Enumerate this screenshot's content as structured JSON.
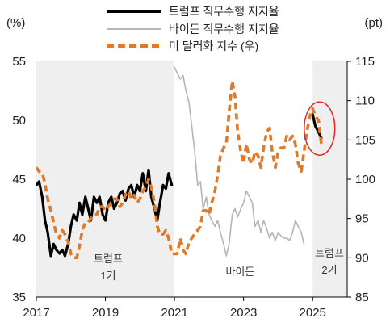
{
  "chart_data": {
    "type": "line",
    "y_left": {
      "unit": "(%)",
      "range": [
        35,
        55
      ],
      "ticks": [
        35,
        40,
        45,
        50,
        55
      ]
    },
    "y_right": {
      "unit": "(pt)",
      "range": [
        85,
        115
      ],
      "ticks": [
        85,
        90,
        95,
        100,
        105,
        110,
        115
      ]
    },
    "x_axis": {
      "range": [
        2017,
        2026
      ],
      "ticks": [
        "2017",
        "2019",
        "2021",
        "2023",
        "2025"
      ],
      "tick_values": [
        2017,
        2019,
        2021,
        2023,
        2025
      ]
    },
    "shaded_periods": [
      {
        "label_lines": [
          "트럼프",
          "1기"
        ],
        "start": 2017,
        "end": 2021
      },
      {
        "label_lines": [
          "트럼프",
          "2기"
        ],
        "start": 2025,
        "end": 2026
      }
    ],
    "annotations": [
      {
        "text": "바이든",
        "x": 2022.9,
        "y": 37.2
      }
    ],
    "highlight_circle": {
      "x": 2025.2,
      "y_left": 49.3,
      "color": "#e8212b"
    },
    "legend": {
      "placement": "top-center",
      "entries": [
        {
          "label": "트럼프 직무수행 지지율",
          "color": "#000000",
          "style": "solid-thick"
        },
        {
          "label": "바이든 직무수행 지지율",
          "color": "#b5b5b5",
          "style": "solid-thin"
        },
        {
          "label": "미 달러화 지수 (우)",
          "color": "#e07a2b",
          "style": "dashed"
        }
      ]
    },
    "series": [
      {
        "name": "트럼프 직무수행 지지율",
        "axis": "left",
        "color": "#000000",
        "points": [
          [
            2017.0,
            44.5
          ],
          [
            2017.08,
            44.8
          ],
          [
            2017.17,
            43.5
          ],
          [
            2017.25,
            41.5
          ],
          [
            2017.33,
            40.5
          ],
          [
            2017.42,
            38.5
          ],
          [
            2017.5,
            39.5
          ],
          [
            2017.58,
            39.0
          ],
          [
            2017.67,
            38.7
          ],
          [
            2017.75,
            39.0
          ],
          [
            2017.83,
            38.5
          ],
          [
            2017.92,
            39.5
          ],
          [
            2018.0,
            41.0
          ],
          [
            2018.08,
            42.0
          ],
          [
            2018.17,
            41.5
          ],
          [
            2018.25,
            43.0
          ],
          [
            2018.33,
            42.0
          ],
          [
            2018.42,
            43.5
          ],
          [
            2018.5,
            42.5
          ],
          [
            2018.58,
            41.5
          ],
          [
            2018.67,
            43.5
          ],
          [
            2018.75,
            43.0
          ],
          [
            2018.83,
            43.5
          ],
          [
            2018.92,
            42.0
          ],
          [
            2019.0,
            41.5
          ],
          [
            2019.08,
            43.0
          ],
          [
            2019.17,
            43.5
          ],
          [
            2019.25,
            42.5
          ],
          [
            2019.33,
            43.0
          ],
          [
            2019.42,
            43.8
          ],
          [
            2019.5,
            44.0
          ],
          [
            2019.58,
            43.2
          ],
          [
            2019.67,
            44.2
          ],
          [
            2019.75,
            44.5
          ],
          [
            2019.83,
            43.5
          ],
          [
            2019.92,
            44.5
          ],
          [
            2020.0,
            44.0
          ],
          [
            2020.08,
            45.5
          ],
          [
            2020.17,
            44.0
          ],
          [
            2020.25,
            45.8
          ],
          [
            2020.33,
            43.5
          ],
          [
            2020.42,
            42.5
          ],
          [
            2020.5,
            41.5
          ],
          [
            2020.58,
            43.0
          ],
          [
            2020.67,
            44.5
          ],
          [
            2020.75,
            44.2
          ],
          [
            2020.83,
            45.5
          ],
          [
            2020.92,
            44.5
          ]
        ]
      },
      {
        "name": "바이든 직무수행 지지율",
        "axis": "left",
        "color": "#b5b5b5",
        "points": [
          [
            2021.0,
            54.5
          ],
          [
            2021.08,
            54.0
          ],
          [
            2021.17,
            53.5
          ],
          [
            2021.25,
            53.8
          ],
          [
            2021.33,
            52.5
          ],
          [
            2021.42,
            51.5
          ],
          [
            2021.5,
            49.5
          ],
          [
            2021.58,
            47.5
          ],
          [
            2021.67,
            44.5
          ],
          [
            2021.75,
            44.8
          ],
          [
            2021.83,
            42.5
          ],
          [
            2021.92,
            43.5
          ],
          [
            2022.0,
            42.0
          ],
          [
            2022.08,
            41.5
          ],
          [
            2022.17,
            41.0
          ],
          [
            2022.25,
            41.5
          ],
          [
            2022.33,
            40.5
          ],
          [
            2022.42,
            39.5
          ],
          [
            2022.5,
            38.5
          ],
          [
            2022.58,
            39.5
          ],
          [
            2022.67,
            42.0
          ],
          [
            2022.75,
            42.5
          ],
          [
            2022.83,
            41.8
          ],
          [
            2022.92,
            42.5
          ],
          [
            2023.0,
            43.0
          ],
          [
            2023.08,
            44.0
          ],
          [
            2023.17,
            43.5
          ],
          [
            2023.25,
            43.0
          ],
          [
            2023.33,
            41.0
          ],
          [
            2023.42,
            41.5
          ],
          [
            2023.5,
            40.5
          ],
          [
            2023.58,
            41.5
          ],
          [
            2023.67,
            40.8
          ],
          [
            2023.75,
            40.0
          ],
          [
            2023.83,
            40.5
          ],
          [
            2023.92,
            39.8
          ],
          [
            2024.0,
            40.5
          ],
          [
            2024.08,
            40.2
          ],
          [
            2024.17,
            40.0
          ],
          [
            2024.25,
            40.0
          ],
          [
            2024.33,
            39.8
          ],
          [
            2024.42,
            40.5
          ],
          [
            2024.5,
            41.5
          ],
          [
            2024.58,
            41.0
          ],
          [
            2024.67,
            40.5
          ],
          [
            2024.75,
            39.5
          ]
        ]
      },
      {
        "name": "미 달러화 지수 (우)",
        "axis": "right",
        "color": "#e07a2b",
        "points": [
          [
            2017.0,
            101.5
          ],
          [
            2017.08,
            101.0
          ],
          [
            2017.17,
            100.8
          ],
          [
            2017.25,
            99.5
          ],
          [
            2017.33,
            97.5
          ],
          [
            2017.42,
            96.0
          ],
          [
            2017.5,
            94.5
          ],
          [
            2017.58,
            93.0
          ],
          [
            2017.67,
            92.5
          ],
          [
            2017.75,
            93.5
          ],
          [
            2017.83,
            93.0
          ],
          [
            2017.92,
            92.0
          ],
          [
            2018.0,
            90.5
          ],
          [
            2018.08,
            90.0
          ],
          [
            2018.17,
            90.0
          ],
          [
            2018.25,
            91.5
          ],
          [
            2018.33,
            93.5
          ],
          [
            2018.42,
            94.5
          ],
          [
            2018.5,
            94.5
          ],
          [
            2018.58,
            95.0
          ],
          [
            2018.67,
            95.5
          ],
          [
            2018.75,
            95.5
          ],
          [
            2018.83,
            96.5
          ],
          [
            2018.92,
            96.5
          ],
          [
            2019.0,
            96.0
          ],
          [
            2019.08,
            96.5
          ],
          [
            2019.17,
            97.0
          ],
          [
            2019.25,
            97.5
          ],
          [
            2019.33,
            97.5
          ],
          [
            2019.42,
            96.5
          ],
          [
            2019.5,
            97.0
          ],
          [
            2019.58,
            98.0
          ],
          [
            2019.67,
            98.5
          ],
          [
            2019.75,
            97.5
          ],
          [
            2019.83,
            98.0
          ],
          [
            2019.92,
            97.0
          ],
          [
            2020.0,
            97.5
          ],
          [
            2020.08,
            98.5
          ],
          [
            2020.17,
            99.0
          ],
          [
            2020.25,
            100.0
          ],
          [
            2020.33,
            99.0
          ],
          [
            2020.42,
            97.0
          ],
          [
            2020.5,
            94.0
          ],
          [
            2020.58,
            93.0
          ],
          [
            2020.67,
            93.0
          ],
          [
            2020.75,
            93.5
          ],
          [
            2020.83,
            92.5
          ],
          [
            2020.92,
            90.5
          ],
          [
            2021.0,
            90.5
          ],
          [
            2021.08,
            90.5
          ],
          [
            2021.17,
            92.5
          ],
          [
            2021.25,
            91.0
          ],
          [
            2021.33,
            90.5
          ],
          [
            2021.42,
            92.0
          ],
          [
            2021.5,
            92.5
          ],
          [
            2021.58,
            93.0
          ],
          [
            2021.67,
            93.5
          ],
          [
            2021.75,
            94.0
          ],
          [
            2021.83,
            96.0
          ],
          [
            2021.92,
            96.0
          ],
          [
            2022.0,
            95.5
          ],
          [
            2022.08,
            97.0
          ],
          [
            2022.17,
            98.5
          ],
          [
            2022.25,
            100.5
          ],
          [
            2022.33,
            103.0
          ],
          [
            2022.42,
            104.0
          ],
          [
            2022.5,
            104.5
          ],
          [
            2022.58,
            108.5
          ],
          [
            2022.67,
            112.5
          ],
          [
            2022.75,
            110.5
          ],
          [
            2022.83,
            106.0
          ],
          [
            2022.92,
            103.5
          ],
          [
            2023.0,
            102.0
          ],
          [
            2023.08,
            104.5
          ],
          [
            2023.17,
            102.5
          ],
          [
            2023.25,
            102.0
          ],
          [
            2023.33,
            103.5
          ],
          [
            2023.42,
            103.0
          ],
          [
            2023.5,
            101.5
          ],
          [
            2023.58,
            104.0
          ],
          [
            2023.67,
            106.0
          ],
          [
            2023.75,
            106.5
          ],
          [
            2023.83,
            103.5
          ],
          [
            2023.92,
            101.5
          ],
          [
            2024.0,
            103.5
          ],
          [
            2024.08,
            104.0
          ],
          [
            2024.17,
            104.0
          ],
          [
            2024.25,
            105.5
          ],
          [
            2024.33,
            105.0
          ],
          [
            2024.42,
            105.5
          ],
          [
            2024.5,
            104.5
          ],
          [
            2024.58,
            102.0
          ],
          [
            2024.67,
            101.0
          ],
          [
            2024.75,
            103.5
          ],
          [
            2024.83,
            106.0
          ],
          [
            2024.92,
            108.0
          ],
          [
            2025.0,
            109.0
          ],
          [
            2025.08,
            108.0
          ],
          [
            2025.17,
            107.5
          ],
          [
            2025.25,
            104.5
          ]
        ]
      },
      {
        "name": "트럼프 직무수행 지지율 2기",
        "axis": "left",
        "color": "#000000",
        "points": [
          [
            2025.0,
            50.5
          ],
          [
            2025.08,
            49.5
          ],
          [
            2025.17,
            49.0
          ],
          [
            2025.25,
            48.5
          ]
        ]
      }
    ]
  }
}
